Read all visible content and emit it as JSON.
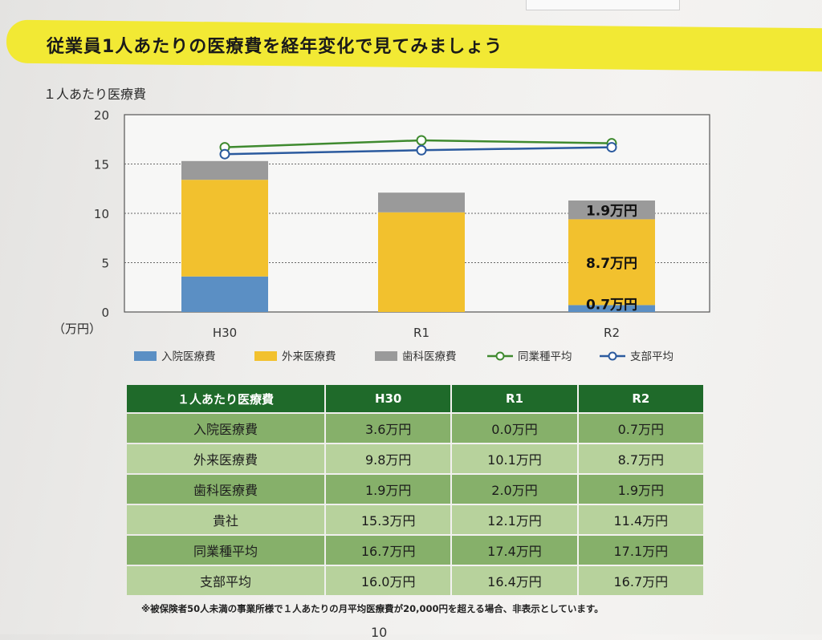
{
  "page": {
    "title": "従業員1人あたりの医療費を経年変化で見てみましょう",
    "note": "※被保険者50人未満の事業所様で１人あたりの月平均医療費が20,000円を超える場合、非表示としています。",
    "page_number": "10"
  },
  "chart_data": {
    "type": "bar",
    "ylabel": "１人あたり医療費",
    "unit_label": "（万円）",
    "ylim": [
      0,
      20
    ],
    "yticks": [
      0,
      5,
      10,
      15,
      20
    ],
    "grid": true,
    "categories": [
      "H30",
      "R1",
      "R2"
    ],
    "stacked_series": [
      {
        "name": "入院医療費",
        "values": [
          3.6,
          0.0,
          0.7
        ],
        "color": "#5b8fc4"
      },
      {
        "name": "外来医療費",
        "values": [
          9.8,
          10.1,
          8.7
        ],
        "color": "#f2c12e"
      },
      {
        "name": "歯科医療費",
        "values": [
          1.9,
          2.0,
          1.9
        ],
        "color": "#9a9a9a"
      }
    ],
    "line_series": [
      {
        "name": "同業種平均",
        "values": [
          16.7,
          17.4,
          17.1
        ],
        "color": "#3f8a2f"
      },
      {
        "name": "支部平均",
        "values": [
          16.0,
          16.4,
          16.7
        ],
        "color": "#2b5a9e"
      }
    ],
    "data_labels": [
      {
        "category": "R2",
        "series": "歯科医療費",
        "text": "1.9万円"
      },
      {
        "category": "R2",
        "series": "外来医療費",
        "text": "8.7万円"
      },
      {
        "category": "R2",
        "series": "入院医療費",
        "text": "0.7万円"
      }
    ],
    "legend": "bottom"
  },
  "table": {
    "headers": [
      "１人あたり医療費",
      "H30",
      "R1",
      "R2"
    ],
    "rows": [
      {
        "label": "入院医療費",
        "values": [
          "3.6万円",
          "0.0万円",
          "0.7万円"
        ]
      },
      {
        "label": "外来医療費",
        "values": [
          "9.8万円",
          "10.1万円",
          "8.7万円"
        ]
      },
      {
        "label": "歯科医療費",
        "values": [
          "1.9万円",
          "2.0万円",
          "1.9万円"
        ]
      },
      {
        "label": "貴社",
        "values": [
          "15.3万円",
          "12.1万円",
          "11.4万円"
        ]
      },
      {
        "label": "同業種平均",
        "values": [
          "16.7万円",
          "17.4万円",
          "17.1万円"
        ]
      },
      {
        "label": "支部平均",
        "values": [
          "16.0万円",
          "16.4万円",
          "16.7万円"
        ]
      }
    ]
  }
}
